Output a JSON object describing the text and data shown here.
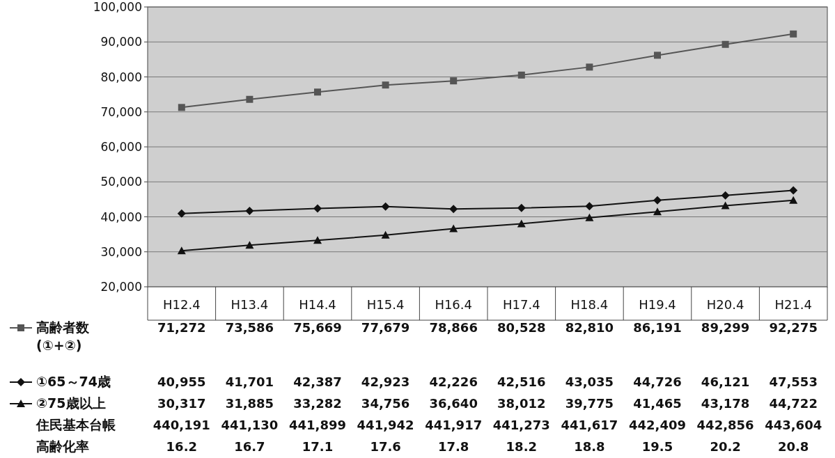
{
  "chart_data": {
    "type": "line",
    "categories": [
      "H12.4",
      "H13.4",
      "H14.4",
      "H15.4",
      "H16.4",
      "H17.4",
      "H18.4",
      "H19.4",
      "H20.4",
      "H21.4"
    ],
    "ylim": [
      20000,
      100000
    ],
    "yticks": [
      {
        "value": 20000,
        "label": "20,000"
      },
      {
        "value": 30000,
        "label": "30,000"
      },
      {
        "value": 40000,
        "label": "40,000"
      },
      {
        "value": 50000,
        "label": "50,000"
      },
      {
        "value": 60000,
        "label": "60,000"
      },
      {
        "value": 70000,
        "label": "70,000"
      },
      {
        "value": 80000,
        "label": "80,000"
      },
      {
        "value": 90000,
        "label": "90,000"
      },
      {
        "value": 100000,
        "label": "100,000"
      }
    ],
    "grid": "y",
    "legend": "bottom",
    "series": [
      {
        "name": "高齢者数 (①+②)",
        "color": "#555555",
        "marker": "square",
        "values": [
          71272,
          73586,
          75669,
          77679,
          78866,
          80528,
          82810,
          86191,
          89299,
          92275
        ],
        "value_labels": [
          "71,272",
          "73,586",
          "75,669",
          "77,679",
          "78,866",
          "80,528",
          "82,810",
          "86,191",
          "89,299",
          "92,275"
        ]
      },
      {
        "name": "①65～74歳",
        "color": "#111111",
        "marker": "diamond",
        "values": [
          40955,
          41701,
          42387,
          42923,
          42226,
          42516,
          43035,
          44726,
          46121,
          47553
        ],
        "value_labels": [
          "40,955",
          "41,701",
          "42,387",
          "42,923",
          "42,226",
          "42,516",
          "43,035",
          "44,726",
          "46,121",
          "47,553"
        ]
      },
      {
        "name": "②75歳以上",
        "color": "#111111",
        "marker": "triangle",
        "values": [
          30317,
          31885,
          33282,
          34756,
          36640,
          38012,
          39775,
          41465,
          43178,
          44722
        ],
        "value_labels": [
          "30,317",
          "31,885",
          "33,282",
          "34,756",
          "36,640",
          "38,012",
          "39,775",
          "41,465",
          "43,178",
          "44,722"
        ]
      },
      {
        "name": "住民基本台帳",
        "values": [
          null,
          null,
          null,
          null,
          null,
          null,
          null,
          null,
          null,
          null
        ],
        "value_labels": [
          "440,191",
          "441,130",
          "441,899",
          "441,942",
          "441,917",
          "441,273",
          "441,617",
          "442,409",
          "442,856",
          "443,604"
        ]
      },
      {
        "name": "高齢化率",
        "values": [
          null,
          null,
          null,
          null,
          null,
          null,
          null,
          null,
          null,
          null
        ],
        "value_labels": [
          "16.2",
          "16.7",
          "17.1",
          "17.6",
          "17.8",
          "18.2",
          "18.8",
          "19.5",
          "20.2",
          "20.8"
        ]
      }
    ]
  }
}
